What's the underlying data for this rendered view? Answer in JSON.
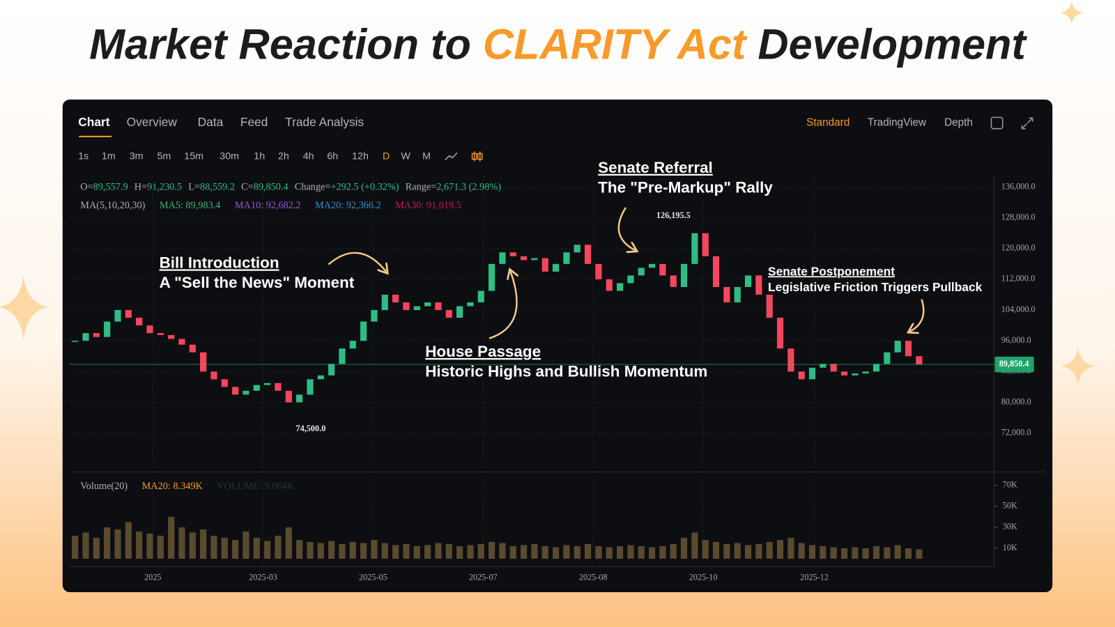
{
  "header": {
    "title": [
      "Market Reaction to ",
      "CLARITY Act",
      " Development"
    ]
  },
  "tabs": [
    "Chart",
    "Overview",
    "Data",
    "Feed",
    "Trade Analysis"
  ],
  "view_modes": [
    "Standard",
    "TradingView",
    "Depth"
  ],
  "timeframes": [
    "1s",
    "1m",
    "3m",
    "5m",
    "15m",
    "30m",
    "1h",
    "2h",
    "4h",
    "6h",
    "12h",
    "D",
    "W",
    "M"
  ],
  "stats": [
    {
      "key": "O=",
      "value": "89,557.9"
    },
    {
      "key": "H=",
      "value": "91,230.5"
    },
    {
      "key": "L=",
      "value": "88,559.2"
    },
    {
      "key": "C=",
      "value": "89,850.4"
    },
    {
      "key": "Change=",
      "value": "+292.5 (+0.32%)"
    },
    {
      "key": "Range=",
      "value": "2,671.3 (2.98%)"
    }
  ],
  "moving_averages": [
    "MA(5,10,20,30)",
    "MA5: 89,983.4",
    "MA10: 92,682.2",
    "MA20: 92,366.2",
    "MA30: 91,019.5"
  ],
  "volume_legend": [
    "Volume(20)",
    "MA20: 8.349K",
    "VOLUME: 9.064K"
  ],
  "annotations": [
    {
      "title": "Bill Introduction",
      "text": "A \"Sell the News\" Moment"
    },
    {
      "title": "Senate Referral",
      "text": "The \"Pre-Markup\" Rally"
    },
    {
      "title": "House Passage",
      "text": "Historic Highs and Bullish Momentum"
    },
    {
      "title": "Senate Postponement",
      "text": "Legislative Friction Triggers Pullback"
    }
  ],
  "chart_data": [
    {
      "type": "candlestick",
      "colors": {
        "up": "#2ebd85",
        "down": "#f6465d"
      },
      "grid": true,
      "values": [
        96000,
        98000,
        97000,
        101000,
        104000,
        102000,
        100000,
        98000,
        97500,
        96500,
        95000,
        93000,
        88000,
        86000,
        84000,
        82000,
        83000,
        84500,
        85000,
        83000,
        80000,
        82000,
        86000,
        87000,
        90000,
        94000,
        96000,
        101000,
        104000,
        108000,
        106000,
        104000,
        105000,
        106000,
        104000,
        102000,
        105000,
        106000,
        109000,
        116000,
        119000,
        118000,
        117000,
        117500,
        114000,
        116000,
        119000,
        121000,
        116000,
        112000,
        109000,
        111000,
        113000,
        115000,
        116000,
        113000,
        110000,
        116000,
        124000,
        118000,
        110000,
        106000,
        110000,
        113000,
        108000,
        102000,
        94000,
        88000,
        86000,
        89000,
        90000,
        88000,
        87000,
        87500,
        88000,
        90000,
        93000,
        96000,
        92000,
        89850.4
      ],
      "ylim": [
        62600,
        138800
      ],
      "yticks": [
        {
          "value": 72000,
          "label": "72,000.0"
        },
        {
          "value": 80000,
          "label": "80,000.0"
        },
        {
          "value": 88000,
          "label": "88,000.0"
        },
        {
          "value": 96000,
          "label": "96,000.0"
        },
        {
          "value": 104000,
          "label": "104,000.0"
        },
        {
          "value": 112000,
          "label": "112,000.0"
        },
        {
          "value": 120000,
          "label": "120,000.0"
        },
        {
          "value": 128000,
          "label": "128,000.0"
        },
        {
          "value": 136000,
          "label": "136,000.0"
        }
      ],
      "last_price": {
        "value": 89850.4,
        "label": "89,850.4"
      },
      "extremes": [
        {
          "value": 126195.5,
          "label": "126,195.5"
        },
        {
          "value": 74500,
          "label": "74,500.0"
        }
      ]
    },
    {
      "type": "bar",
      "color": "#5a4a2e",
      "values": [
        22000,
        25000,
        20000,
        30000,
        28000,
        35000,
        26000,
        24000,
        22000,
        40000,
        30000,
        25000,
        28000,
        22000,
        20000,
        18000,
        26000,
        20000,
        17000,
        22000,
        30000,
        18000,
        16000,
        15000,
        17000,
        14000,
        16000,
        15000,
        18000,
        15000,
        13000,
        14000,
        12000,
        13000,
        15000,
        14000,
        12000,
        13000,
        14000,
        16000,
        15000,
        12000,
        13000,
        14000,
        12000,
        11000,
        13000,
        12000,
        14000,
        12000,
        11000,
        12000,
        13000,
        12000,
        11000,
        12000,
        14000,
        20000,
        25000,
        18000,
        16000,
        14000,
        15000,
        13000,
        14000,
        16000,
        18000,
        20000,
        15000,
        13000,
        12000,
        11000,
        10000,
        11000,
        10000,
        12000,
        11000,
        13000,
        10000,
        9064
      ],
      "ylim": [
        0,
        80000
      ],
      "yticks": [
        {
          "value": 10000,
          "label": "10K"
        },
        {
          "value": 30000,
          "label": "30K"
        },
        {
          "value": 50000,
          "label": "50K"
        },
        {
          "value": 70000,
          "label": "70K"
        }
      ],
      "xlim": [
        -0.5,
        79.5
      ],
      "xticks": [
        {
          "value": 7.28,
          "label": "2025"
        },
        {
          "value": 17.6,
          "label": "2025-03"
        },
        {
          "value": 27.9,
          "label": "2025-05"
        },
        {
          "value": 38.2,
          "label": "2025-07"
        },
        {
          "value": 48.5,
          "label": "2025-08"
        },
        {
          "value": 58.8,
          "label": "2025-10"
        },
        {
          "value": 69.2,
          "label": "2025-12"
        }
      ]
    }
  ]
}
